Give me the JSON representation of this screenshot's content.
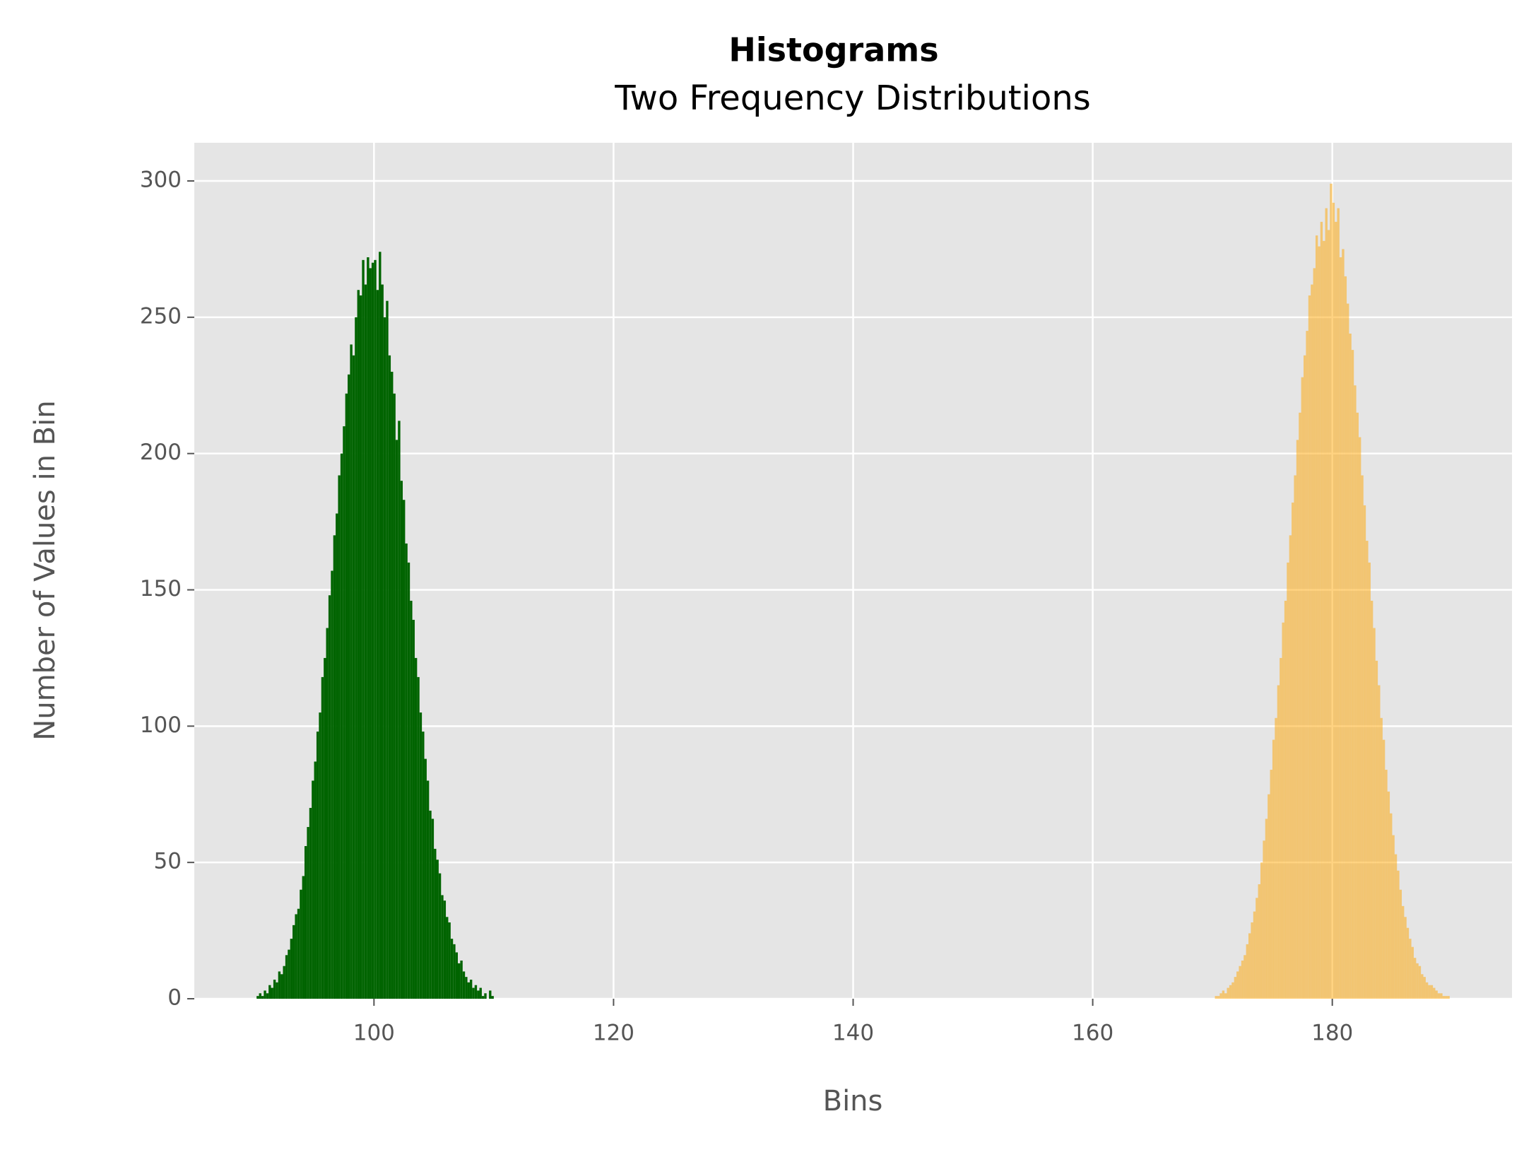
{
  "chart_data": {
    "type": "histogram",
    "title": "Histograms",
    "subtitle": "Two Frequency Distributions",
    "x_label": "Bins",
    "y_label": "Number of Values in Bin",
    "xlim": [
      85,
      195
    ],
    "xticks": [
      100,
      120,
      140,
      160,
      180
    ],
    "ylim": [
      0,
      314
    ],
    "yticks": [
      0,
      50,
      100,
      150,
      200,
      250,
      300
    ],
    "grid": true,
    "series": [
      {
        "color": "#006400",
        "alpha": 1,
        "bins": [
          90,
          90.2,
          90.4,
          90.6,
          90.8,
          91,
          91.2,
          91.4,
          91.6,
          91.8,
          92,
          92.2,
          92.4,
          92.6,
          92.8,
          93,
          93.2,
          93.4,
          93.6,
          93.8,
          94,
          94.2,
          94.4,
          94.6,
          94.8,
          95,
          95.2,
          95.4,
          95.6,
          95.8,
          96,
          96.2,
          96.4,
          96.6,
          96.8,
          97,
          97.2,
          97.4,
          97.6,
          97.8,
          98,
          98.2,
          98.4,
          98.6,
          98.8,
          99,
          99.2,
          99.4,
          99.6,
          99.8,
          100,
          100.2,
          100.4,
          100.6,
          100.8,
          101,
          101.2,
          101.4,
          101.6,
          101.8,
          102,
          102.2,
          102.4,
          102.6,
          102.8,
          103,
          103.2,
          103.4,
          103.6,
          103.8,
          104,
          104.2,
          104.4,
          104.6,
          104.8,
          105,
          105.2,
          105.4,
          105.6,
          105.8,
          106,
          106.2,
          106.4,
          106.6,
          106.8,
          107,
          107.2,
          107.4,
          107.6,
          107.8,
          108,
          108.2,
          108.4,
          108.6,
          108.8,
          109,
          109.2,
          109.4,
          109.6,
          109.8,
          110
        ],
        "values": [
          0,
          1,
          2,
          1,
          3,
          2,
          5,
          4,
          7,
          6,
          10,
          9,
          12,
          16,
          18,
          22,
          27,
          31,
          33,
          40,
          45,
          56,
          63,
          70,
          80,
          87,
          98,
          105,
          118,
          125,
          136,
          148,
          157,
          170,
          178,
          192,
          200,
          210,
          222,
          229,
          240,
          236,
          250,
          260,
          258,
          271,
          262,
          272,
          268,
          270,
          271,
          260,
          274,
          262,
          250,
          256,
          236,
          230,
          222,
          205,
          212,
          190,
          183,
          167,
          160,
          146,
          139,
          125,
          118,
          105,
          98,
          88,
          80,
          69,
          66,
          55,
          51,
          46,
          38,
          36,
          30,
          28,
          22,
          20,
          17,
          13,
          14,
          10,
          8,
          6,
          7,
          4,
          5,
          3,
          4,
          1,
          2,
          0,
          3,
          1
        ]
      },
      {
        "color": "#ffa500",
        "alpha": 0.5,
        "bins": [
          170,
          170.2,
          170.4,
          170.6,
          170.8,
          171,
          171.2,
          171.4,
          171.6,
          171.8,
          172,
          172.2,
          172.4,
          172.6,
          172.8,
          173,
          173.2,
          173.4,
          173.6,
          173.8,
          174,
          174.2,
          174.4,
          174.6,
          174.8,
          175,
          175.2,
          175.4,
          175.6,
          175.8,
          176,
          176.2,
          176.4,
          176.6,
          176.8,
          177,
          177.2,
          177.4,
          177.6,
          177.8,
          178,
          178.2,
          178.4,
          178.6,
          178.8,
          179,
          179.2,
          179.4,
          179.6,
          179.8,
          180,
          180.2,
          180.4,
          180.6,
          180.8,
          181,
          181.2,
          181.4,
          181.6,
          181.8,
          182,
          182.2,
          182.4,
          182.6,
          182.8,
          183,
          183.2,
          183.4,
          183.6,
          183.8,
          184,
          184.2,
          184.4,
          184.6,
          184.8,
          185,
          185.2,
          185.4,
          185.6,
          185.8,
          186,
          186.2,
          186.4,
          186.6,
          186.8,
          187,
          187.2,
          187.4,
          187.6,
          187.8,
          188,
          188.2,
          188.4,
          188.6,
          188.8,
          189,
          189.2,
          189.4,
          189.6,
          189.8,
          190
        ],
        "values": [
          0,
          1,
          1,
          2,
          3,
          2,
          4,
          5,
          6,
          8,
          10,
          12,
          14,
          16,
          20,
          24,
          28,
          32,
          37,
          42,
          50,
          58,
          66,
          75,
          84,
          95,
          103,
          115,
          125,
          138,
          146,
          160,
          170,
          182,
          192,
          205,
          215,
          228,
          236,
          245,
          258,
          262,
          268,
          280,
          276,
          285,
          278,
          290,
          282,
          299,
          292,
          285,
          290,
          272,
          275,
          265,
          255,
          244,
          238,
          225,
          215,
          206,
          192,
          181,
          168,
          160,
          146,
          136,
          124,
          115,
          103,
          95,
          84,
          76,
          68,
          60,
          53,
          47,
          40,
          34,
          30,
          26,
          22,
          19,
          15,
          13,
          12,
          9,
          8,
          6,
          5,
          5,
          4,
          3,
          2,
          2,
          1,
          1,
          1,
          0
        ]
      }
    ]
  }
}
